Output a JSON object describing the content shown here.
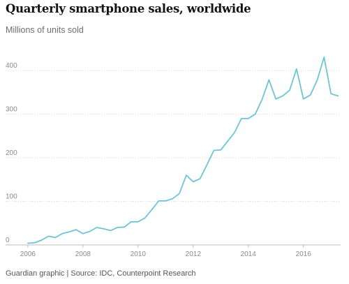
{
  "title": "Quarterly smartphone sales, worldwide",
  "subtitle": "Millions of units sold",
  "source": "Guardian graphic | Source: IDC, Counterpoint Research",
  "colors": {
    "line": "#6cc5d6",
    "grid": "#d8d8d8",
    "axis": "#bdbdbd",
    "tick_text": "#8a8a8a"
  },
  "chart_data": {
    "type": "line",
    "title": "Quarterly smartphone sales, worldwide",
    "subtitle": "Millions of units sold",
    "xlabel": "",
    "ylabel": "",
    "xlim": [
      2005.75,
      2017.35
    ],
    "ylim": [
      0,
      450
    ],
    "x_ticks": [
      2006,
      2008,
      2010,
      2012,
      2014,
      2016
    ],
    "y_ticks": [
      0,
      100,
      200,
      300,
      400
    ],
    "grid": "horizontal dotted",
    "legend": "none",
    "series": [
      {
        "x": [
          2006.0,
          2006.25,
          2006.5,
          2006.75,
          2007.0,
          2007.25,
          2007.5,
          2007.75,
          2008.0,
          2008.25,
          2008.5,
          2008.75,
          2009.0,
          2009.25,
          2009.5,
          2009.75,
          2010.0,
          2010.25,
          2010.5,
          2010.75,
          2011.0,
          2011.25,
          2011.5,
          2011.75,
          2012.0,
          2012.25,
          2012.5,
          2012.75,
          2013.0,
          2013.25,
          2013.5,
          2013.75,
          2014.0,
          2014.25,
          2014.5,
          2014.75,
          2015.0,
          2015.25,
          2015.5,
          2015.75,
          2016.0,
          2016.25,
          2016.5,
          2016.75,
          2017.0,
          2017.25
        ],
        "y": [
          4,
          5,
          11,
          20,
          17,
          26,
          30,
          35,
          26,
          31,
          40,
          37,
          33,
          40,
          41,
          53,
          53,
          62,
          81,
          101,
          101,
          106,
          118,
          160,
          145,
          152,
          184,
          217,
          218,
          238,
          258,
          290,
          290,
          300,
          334,
          379,
          335,
          342,
          355,
          404,
          335,
          344,
          378,
          431,
          347,
          342
        ]
      }
    ]
  }
}
